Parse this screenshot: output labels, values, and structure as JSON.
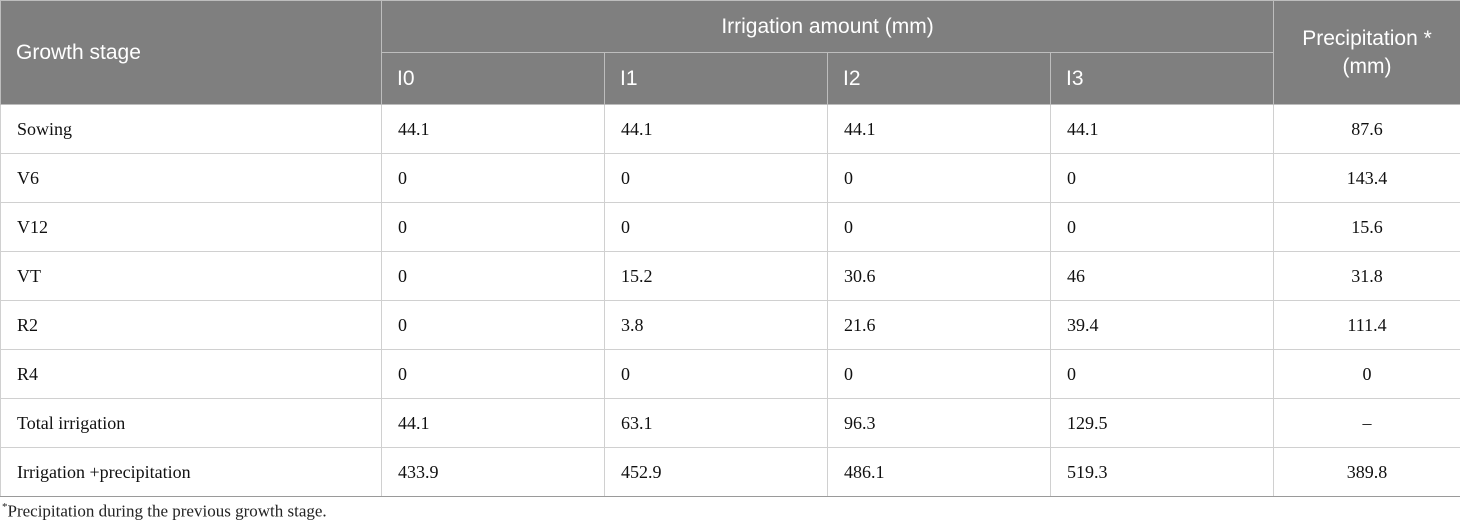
{
  "table": {
    "header": {
      "growth_stage": "Growth stage",
      "irrigation_group": "Irrigation amount (mm)",
      "precipitation_line1": "Precipitation *",
      "precipitation_line2": "(mm)",
      "treatments": [
        "I0",
        "I1",
        "I2",
        "I3"
      ]
    },
    "rows": [
      {
        "stage": "Sowing",
        "i0": "44.1",
        "i1": "44.1",
        "i2": "44.1",
        "i3": "44.1",
        "precipitation": "87.6"
      },
      {
        "stage": "V6",
        "i0": "0",
        "i1": "0",
        "i2": "0",
        "i3": "0",
        "precipitation": "143.4"
      },
      {
        "stage": "V12",
        "i0": "0",
        "i1": "0",
        "i2": "0",
        "i3": "0",
        "precipitation": "15.6"
      },
      {
        "stage": "VT",
        "i0": "0",
        "i1": "15.2",
        "i2": "30.6",
        "i3": "46",
        "precipitation": "31.8"
      },
      {
        "stage": "R2",
        "i0": "0",
        "i1": "3.8",
        "i2": "21.6",
        "i3": "39.4",
        "precipitation": "111.4"
      },
      {
        "stage": "R4",
        "i0": "0",
        "i1": "0",
        "i2": "0",
        "i3": "0",
        "precipitation": "0"
      },
      {
        "stage": "Total irrigation",
        "i0": "44.1",
        "i1": "63.1",
        "i2": "96.3",
        "i3": "129.5",
        "precipitation": "–"
      },
      {
        "stage": "Irrigation +precipitation",
        "i0": "433.9",
        "i1": "452.9",
        "i2": "486.1",
        "i3": "519.3",
        "precipitation": "389.8"
      }
    ]
  },
  "footnote": {
    "marker": "*",
    "text": "Precipitation during the previous growth stage."
  }
}
